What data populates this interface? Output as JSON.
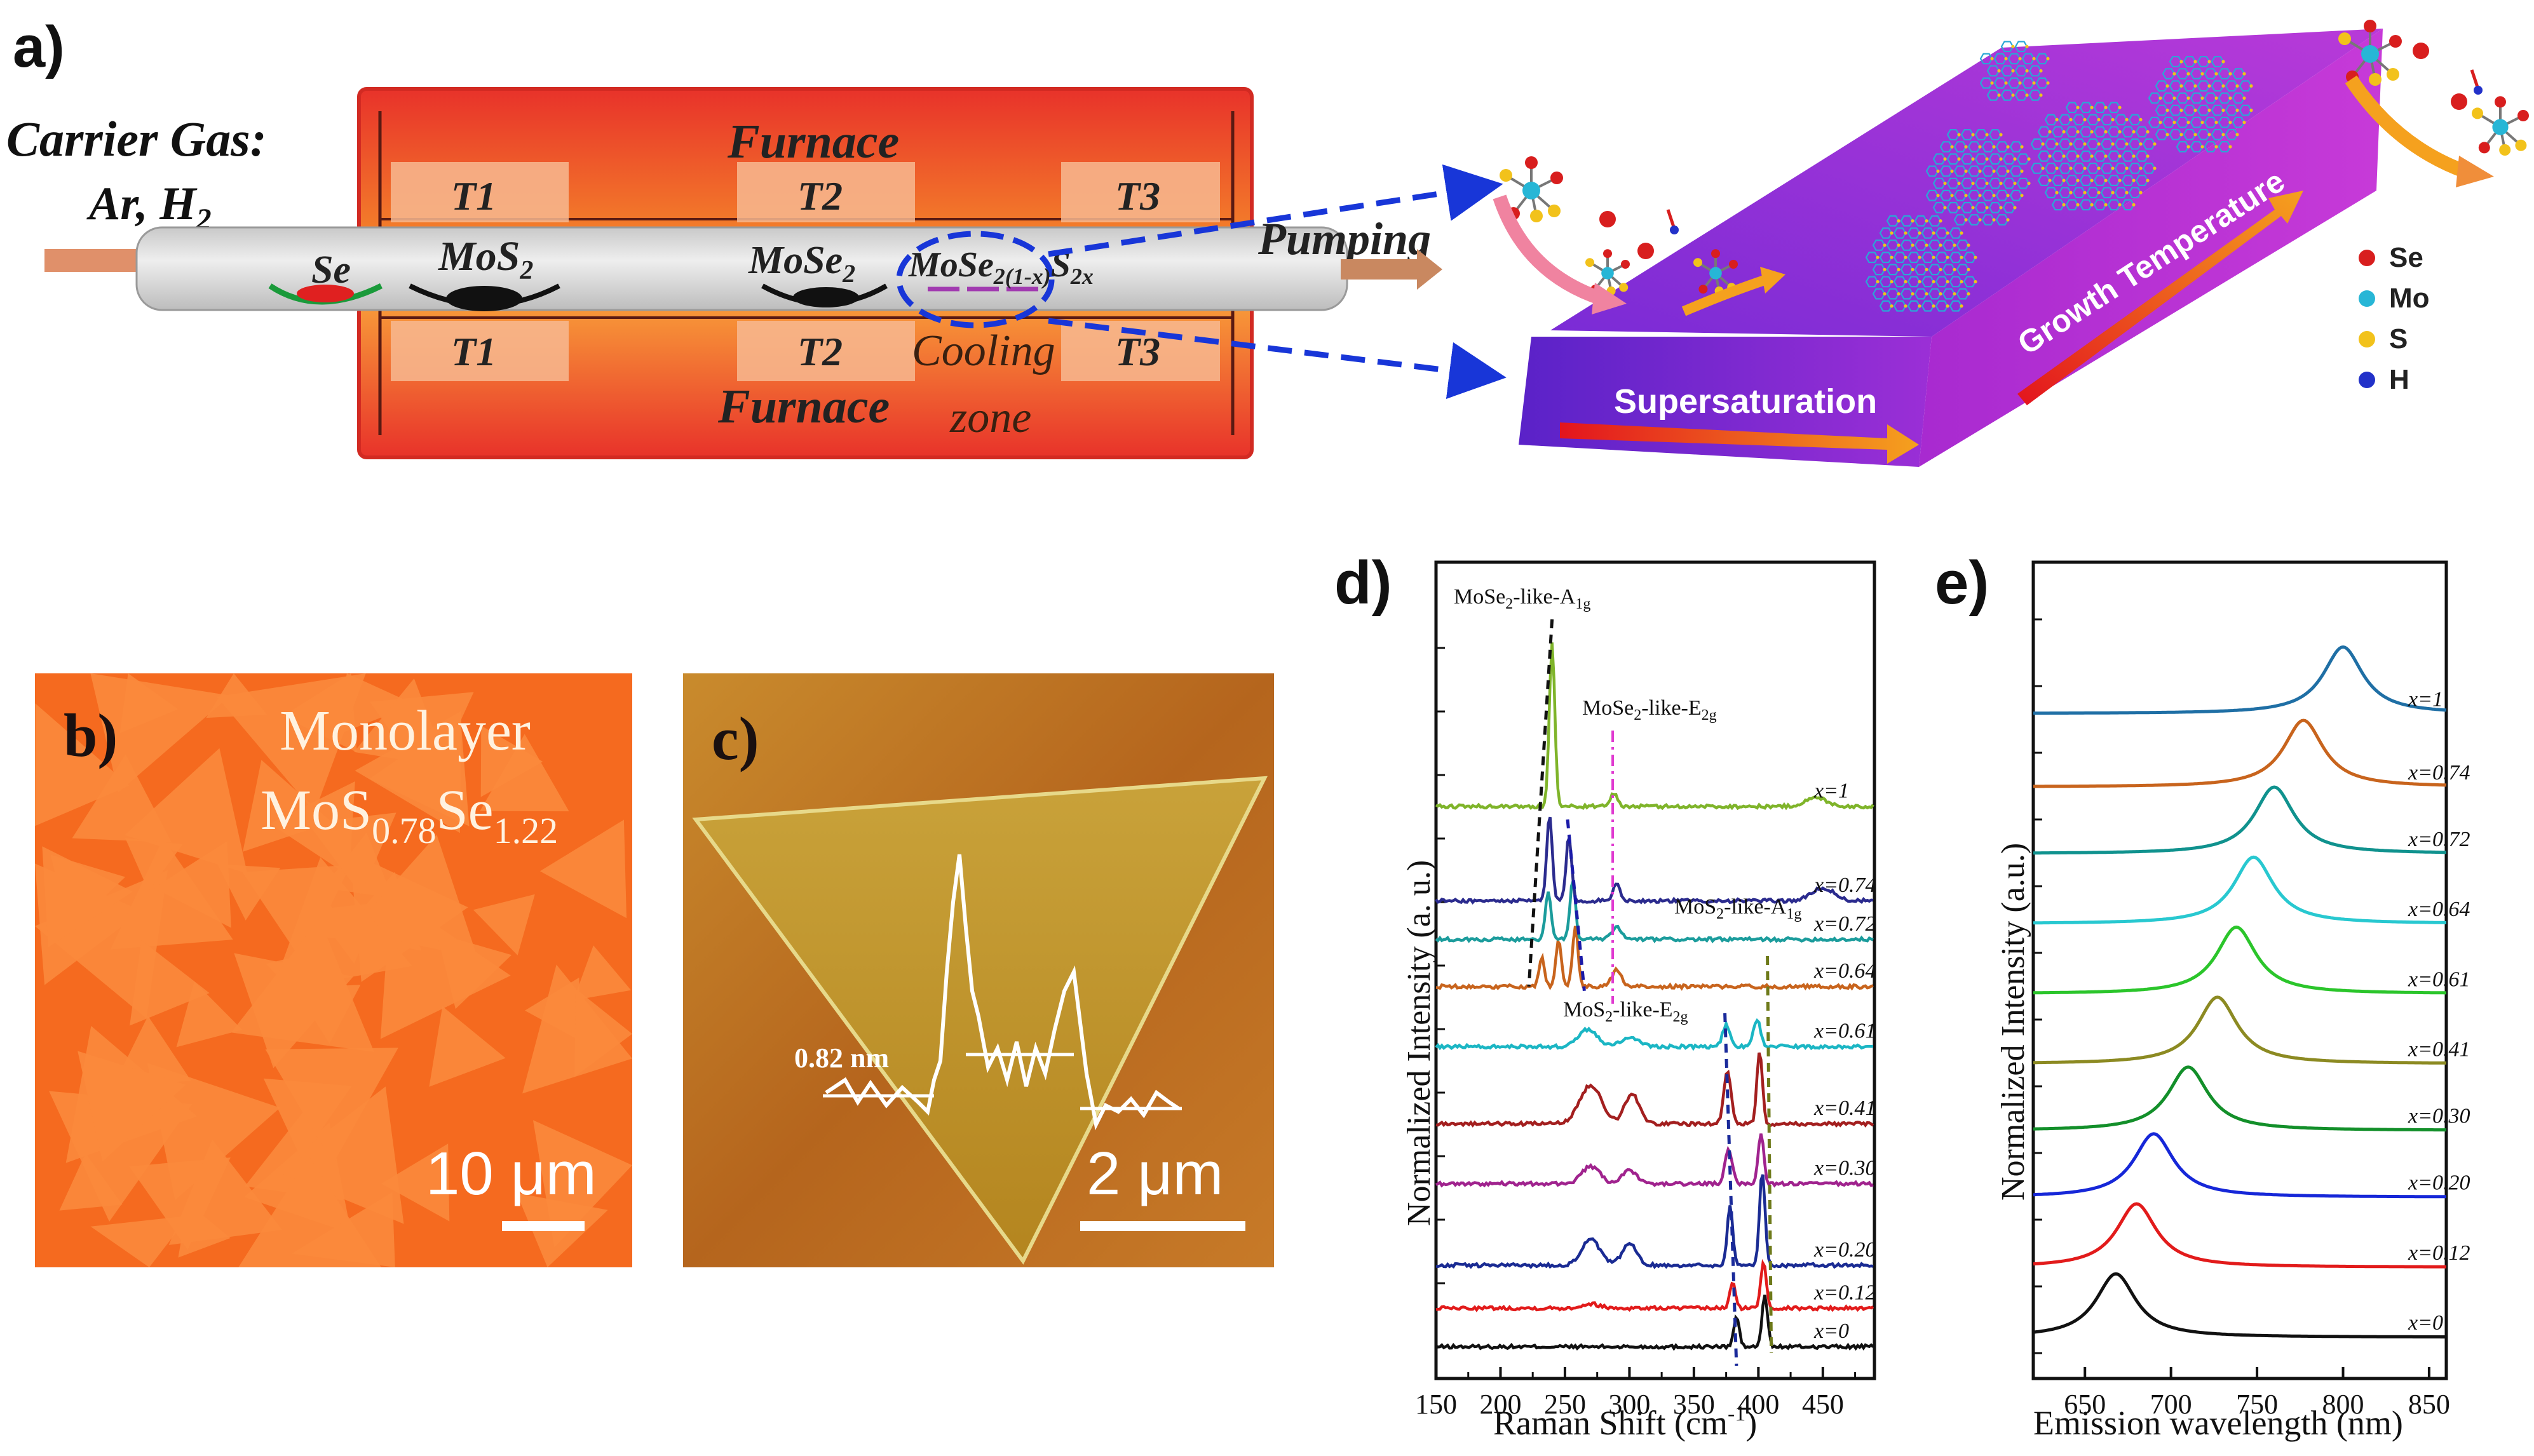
{
  "panels": {
    "a": {
      "label": "a)",
      "carrier_gas_line1": "Carrier Gas:",
      "carrier_gas_line2": "Ar, H",
      "carrier_gas_sub": "2",
      "furnace_top": "Furnace",
      "furnace_bottom": "Furnace",
      "zones": [
        "T1",
        "T2",
        "T3"
      ],
      "source_se": "Se",
      "source_mos2": "MoS",
      "source_mos2_sub": "2",
      "source_mose2": "MoSe",
      "source_mose2_sub": "2",
      "product": "MoSe",
      "product_sub1": "2(1-x)",
      "product_s": "S",
      "product_sub2": "2x",
      "cooling_line1": "Cooling",
      "cooling_line2": "zone",
      "pumping": "Pumping",
      "supersaturation": "Supersaturation",
      "growth_temperature": "Growth Temperature",
      "legend": [
        {
          "label": "Se",
          "color": "#d81e1e"
        },
        {
          "label": "Mo",
          "color": "#27b6d6"
        },
        {
          "label": "S",
          "color": "#f2c21b"
        },
        {
          "label": "H",
          "color": "#2231c9"
        }
      ]
    },
    "b": {
      "label": "b)",
      "title_line1": "Monolayer",
      "title_line2_main": "MoS",
      "title_sub1": "0.78",
      "title_mid": "Se",
      "title_sub2": "1.22",
      "scale": "10 μm"
    },
    "c": {
      "label": "c)",
      "height_label": "0.82 nm",
      "scale": "2 μm"
    },
    "d": {
      "label": "d)",
      "chart_data": {
        "type": "line",
        "xlabel": "Raman Shift (cm",
        "xlabel_sup": "-1",
        "xlabel_end": ")",
        "ylabel": "Normalized Intensity (a. u.)",
        "xlim": [
          150,
          490
        ],
        "xticks": [
          150,
          200,
          250,
          300,
          350,
          400,
          450
        ],
        "annotations": [
          {
            "text": "MoSe",
            "sub": "2",
            "rest": "-like-A",
            "sub2": "1g"
          },
          {
            "text": "MoSe",
            "sub": "2",
            "rest": "-like-E",
            "sub2": "2g"
          },
          {
            "text": "MoS",
            "sub": "2",
            "rest": "-like-A",
            "sub2": "1g"
          },
          {
            "text": "MoS",
            "sub": "2",
            "rest": "-like-E",
            "sub2": "2g"
          }
        ],
        "series": [
          {
            "name": "x=0",
            "color": "#111111",
            "baseline": 0.0,
            "peaks": [
              [
                383,
                0.35,
                3
              ],
              [
                405,
                0.6,
                3
              ]
            ]
          },
          {
            "name": "x=0.12",
            "color": "#e21b1b",
            "baseline": 0.45,
            "peaks": [
              [
                270,
                0.05,
                10
              ],
              [
                380,
                0.3,
                3
              ],
              [
                404,
                0.55,
                3
              ]
            ]
          },
          {
            "name": "x=0.20",
            "color": "#1a2b93",
            "baseline": 0.95,
            "peaks": [
              [
                270,
                0.3,
                10
              ],
              [
                300,
                0.25,
                8
              ],
              [
                378,
                0.7,
                3
              ],
              [
                403,
                1.1,
                3
              ]
            ]
          },
          {
            "name": "x=0.30",
            "color": "#a0238e",
            "baseline": 1.9,
            "peaks": [
              [
                270,
                0.2,
                10
              ],
              [
                300,
                0.15,
                8
              ],
              [
                377,
                0.4,
                4
              ],
              [
                402,
                0.6,
                3
              ]
            ]
          },
          {
            "name": "x=0.41",
            "color": "#a31f1f",
            "baseline": 2.6,
            "peaks": [
              [
                270,
                0.45,
                12
              ],
              [
                302,
                0.35,
                8
              ],
              [
                376,
                0.6,
                4
              ],
              [
                401,
                0.85,
                3
              ]
            ]
          },
          {
            "name": "x=0.61",
            "color": "#1bb6c4",
            "baseline": 3.5,
            "peaks": [
              [
                268,
                0.2,
                10
              ],
              [
                300,
                0.1,
                10
              ],
              [
                375,
                0.25,
                4
              ],
              [
                399,
                0.3,
                4
              ]
            ]
          },
          {
            "name": "x=0.64",
            "color": "#c8641d",
            "baseline": 4.2,
            "peaks": [
              [
                232,
                0.35,
                3
              ],
              [
                245,
                0.55,
                3
              ],
              [
                258,
                0.7,
                3
              ],
              [
                290,
                0.2,
                5
              ]
            ]
          },
          {
            "name": "x=0.72",
            "color": "#1b9c9c",
            "baseline": 4.75,
            "peaks": [
              [
                237,
                0.55,
                3
              ],
              [
                256,
                0.7,
                3
              ],
              [
                290,
                0.15,
                5
              ]
            ]
          },
          {
            "name": "x=0.74",
            "color": "#2b2b8e",
            "baseline": 5.2,
            "peaks": [
              [
                238,
                1.0,
                3
              ],
              [
                253,
                0.75,
                3
              ],
              [
                290,
                0.2,
                4
              ],
              [
                450,
                0.15,
                12
              ]
            ]
          },
          {
            "name": "x=1",
            "color": "#7fb42a",
            "baseline": 6.3,
            "peaks": [
              [
                240,
                1.9,
                3
              ],
              [
                288,
                0.15,
                4
              ],
              [
                445,
                0.1,
                12
              ]
            ]
          }
        ]
      }
    },
    "e": {
      "label": "e)",
      "chart_data": {
        "type": "line",
        "xlabel": "Emission wavelength (nm)",
        "ylabel": "Normalized Intensity (a.u.)",
        "xlim": [
          620,
          860
        ],
        "xticks": [
          650,
          700,
          750,
          800,
          850
        ],
        "series": [
          {
            "name": "x=0",
            "color": "#111111",
            "baseline": 0.0,
            "peak": 668,
            "height": 1.0,
            "width": 14
          },
          {
            "name": "x=0.12",
            "color": "#e21b1b",
            "baseline": 1.05,
            "peak": 680,
            "height": 1.0,
            "width": 14
          },
          {
            "name": "x=0.20",
            "color": "#1627d8",
            "baseline": 2.1,
            "peak": 690,
            "height": 1.0,
            "width": 14
          },
          {
            "name": "x=0.30",
            "color": "#138f2a",
            "baseline": 3.1,
            "peak": 710,
            "height": 1.0,
            "width": 14
          },
          {
            "name": "x=0.41",
            "color": "#8c8a22",
            "baseline": 4.1,
            "peak": 727,
            "height": 1.05,
            "width": 14
          },
          {
            "name": "x=0.61",
            "color": "#2bc52b",
            "baseline": 5.15,
            "peak": 738,
            "height": 1.05,
            "width": 14
          },
          {
            "name": "x=0.64",
            "color": "#28c8d0",
            "baseline": 6.2,
            "peak": 748,
            "height": 1.05,
            "width": 14
          },
          {
            "name": "x=0.72",
            "color": "#10928e",
            "baseline": 7.25,
            "peak": 760,
            "height": 1.05,
            "width": 14
          },
          {
            "name": "x=0.74",
            "color": "#c8641d",
            "baseline": 8.25,
            "peak": 777,
            "height": 1.05,
            "width": 14
          },
          {
            "name": "x=1",
            "color": "#1f6fa5",
            "baseline": 9.35,
            "peak": 800,
            "height": 1.05,
            "width": 14
          }
        ]
      }
    }
  }
}
